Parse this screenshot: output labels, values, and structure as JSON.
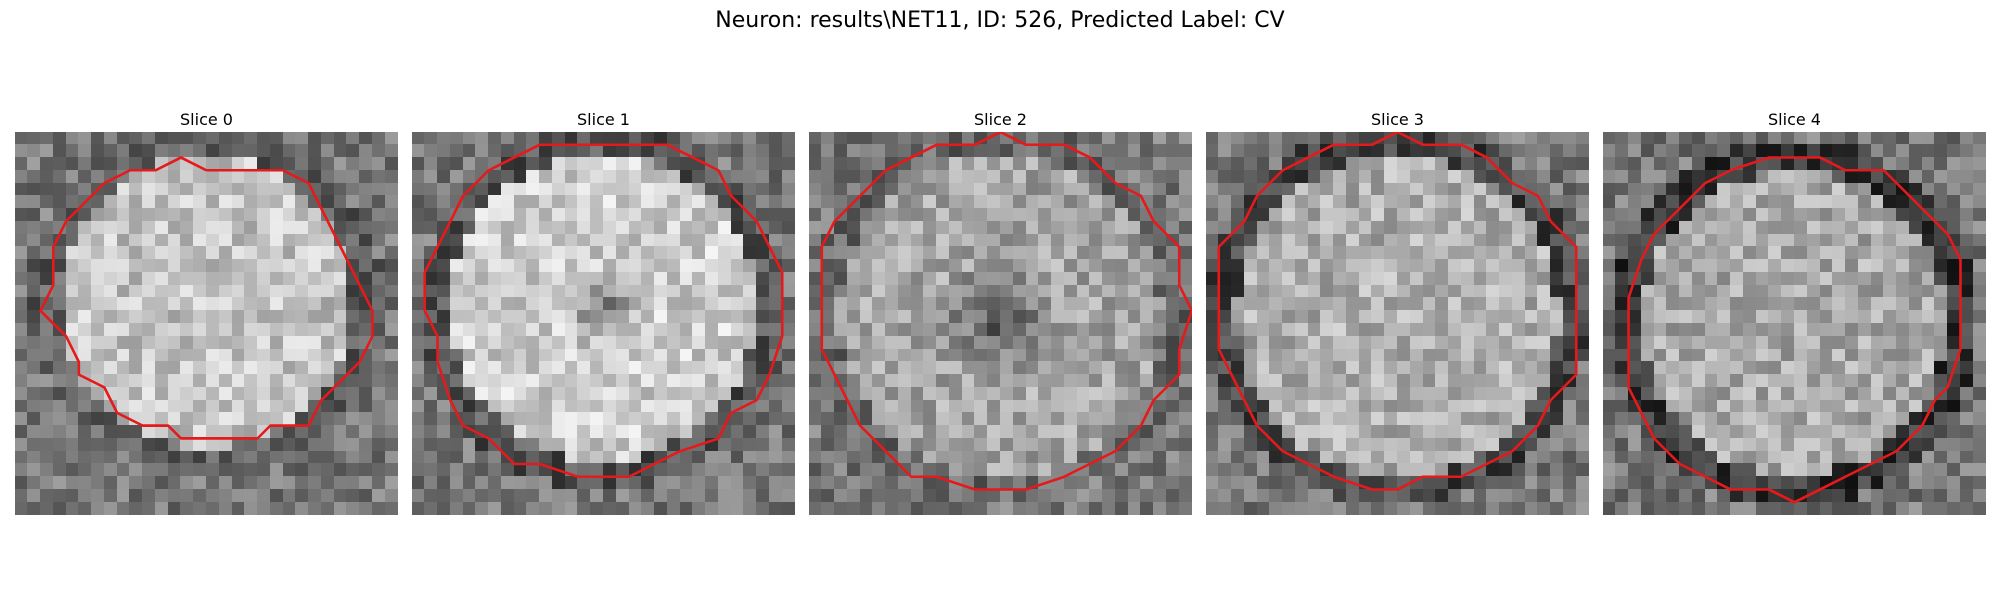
{
  "figure": {
    "title": "Neuron: results\\NET11, ID: 526, Predicted Label: CV"
  },
  "colors": {
    "contour": "#e41a1c",
    "background": "#ffffff"
  },
  "panels": [
    {
      "title": "Slice 0"
    },
    {
      "title": "Slice 1"
    },
    {
      "title": "Slice 2"
    },
    {
      "title": "Slice 3"
    },
    {
      "title": "Slice 4"
    }
  ]
}
